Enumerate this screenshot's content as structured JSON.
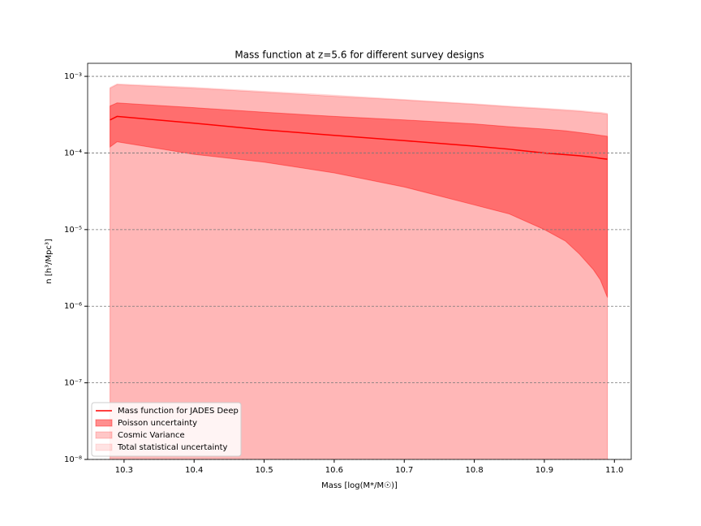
{
  "chart_data": {
    "type": "line",
    "title": "Mass function at z=5.6 for different survey designs",
    "x_label": "Mass [log(M*/M☉)]",
    "y_label": "n [h³/Mpc³]",
    "log_y": true,
    "grid": "y",
    "legend": "lower left",
    "xlim": [
      10.248,
      11.024
    ],
    "xticks": [
      10.3,
      10.4,
      10.5,
      10.6,
      10.7,
      10.8,
      10.9,
      {
        "value": 11,
        "label": "11.0"
      }
    ],
    "ylim": [
      1e-08,
      0.00148
    ],
    "yticks": [
      {
        "value": 1e-08,
        "label": "10⁻⁸"
      },
      {
        "value": 1e-07,
        "label": "10⁻⁷"
      },
      {
        "value": 1e-06,
        "label": "10⁻⁶"
      },
      {
        "value": 1e-05,
        "label": "10⁻⁵"
      },
      {
        "value": 0.0001,
        "label": "10⁻⁴"
      },
      {
        "value": 0.001,
        "label": "10⁻³"
      }
    ],
    "x": [
      10.28,
      10.29,
      10.4,
      10.5,
      10.6,
      10.7,
      10.8,
      10.85,
      10.9,
      10.93,
      10.95,
      10.97,
      10.98,
      10.99
    ],
    "series": [
      {
        "name": "Mass function for JADES Deep",
        "kind": "line",
        "color": "#ff0000",
        "values": [
          0.00027,
          0.0003,
          0.000245,
          0.0002,
          0.00017,
          0.000145,
          0.000123,
          0.000112,
          0.0001,
          9.5e-05,
          9.2e-05,
          8.8e-05,
          8.5e-05,
          8.3e-05
        ]
      },
      {
        "name": "Poisson uncertainty",
        "kind": "band",
        "color": "#ff0000",
        "alpha": 0.4,
        "lower": [
          0.00012,
          0.00014,
          9.6e-05,
          7.6e-05,
          5.5e-05,
          3.6e-05,
          2.1e-05,
          1.6e-05,
          1e-05,
          7.1e-06,
          4.8e-06,
          3e-06,
          2.2e-06,
          1.3e-06
        ],
        "upper": [
          0.00041,
          0.00045,
          0.00039,
          0.00034,
          0.0003,
          0.00027,
          0.00024,
          0.00022,
          0.000205,
          0.000195,
          0.000185,
          0.000175,
          0.00017,
          0.000165
        ]
      },
      {
        "name": "Cosmic Variance",
        "kind": "band",
        "color": "#ff0000",
        "alpha": 0.2,
        "lower": [
          1e-09,
          1e-09,
          1e-09,
          1e-09,
          1e-09,
          1e-09,
          1e-09,
          1e-09,
          1e-09,
          1e-09,
          1e-09,
          1e-09,
          1e-09,
          1e-09
        ],
        "upper": [
          0.0007,
          0.00078,
          0.0007,
          0.00062,
          0.00055,
          0.00049,
          0.00043,
          0.0004,
          0.000375,
          0.00036,
          0.00035,
          0.000335,
          0.00033,
          0.00032
        ]
      },
      {
        "name": "Total statistical uncertainty",
        "kind": "band",
        "color": "#ff0000",
        "alpha": 0.1,
        "lower": [
          1e-09,
          1e-09,
          1e-09,
          1e-09,
          1e-09,
          1e-09,
          1e-09,
          1e-09,
          1e-09,
          1e-09,
          1e-09,
          1e-09,
          1e-09,
          1e-09
        ],
        "upper": [
          0.00072,
          0.0008,
          0.00072,
          0.00064,
          0.00057,
          0.0005,
          0.00044,
          0.00041,
          0.000385,
          0.00037,
          0.00036,
          0.000345,
          0.00034,
          0.00033
        ]
      }
    ]
  }
}
